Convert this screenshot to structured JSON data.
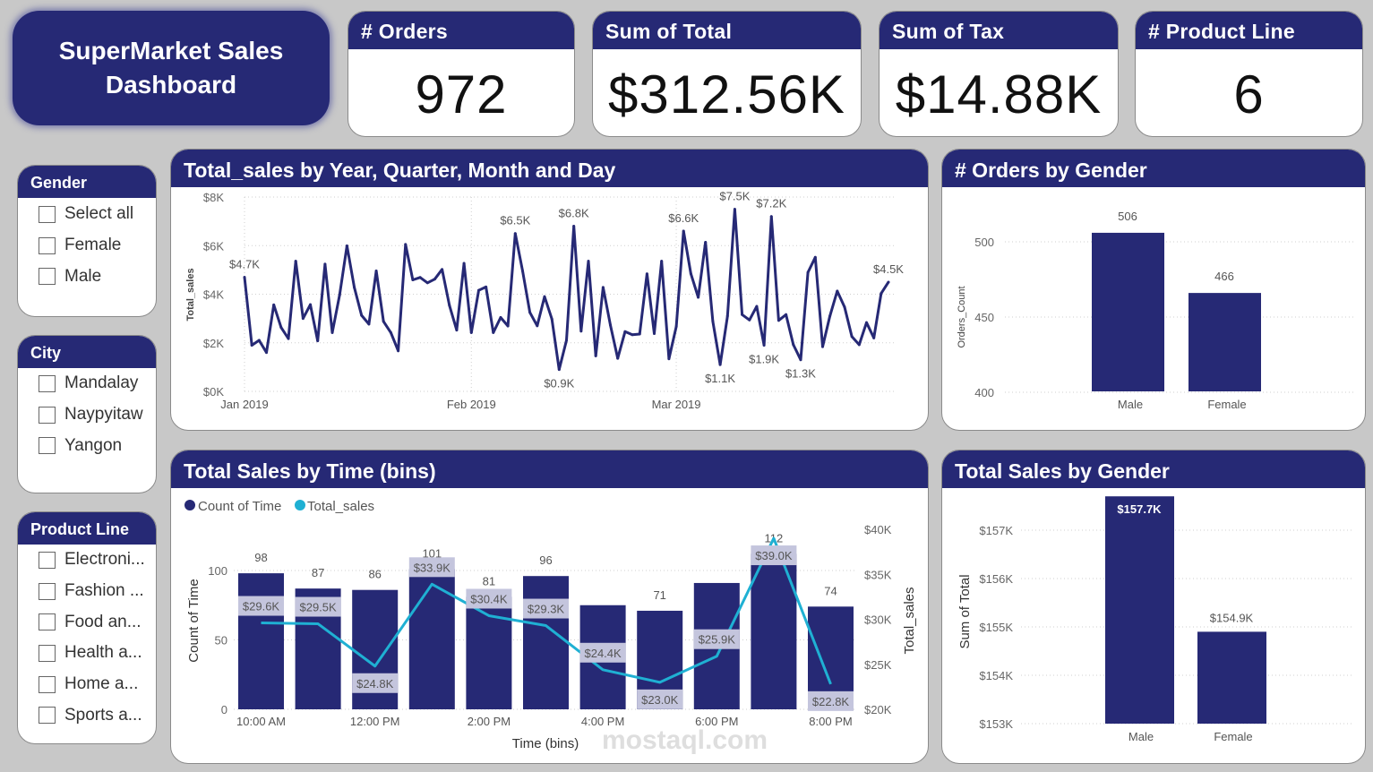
{
  "title": {
    "line1": "SuperMarket Sales",
    "line2": "Dashboard"
  },
  "kpis": [
    {
      "label": "# Orders",
      "value": "972"
    },
    {
      "label": "Sum of Total",
      "value": "$312.56K"
    },
    {
      "label": "Sum of Tax",
      "value": "$14.88K"
    },
    {
      "label": "# Product Line",
      "value": "6"
    }
  ],
  "slicers": {
    "gender": {
      "title": "Gender",
      "items": [
        "Select all",
        "Female",
        "Male"
      ]
    },
    "city": {
      "title": "City",
      "items": [
        "Mandalay",
        "Naypyitaw",
        "Yangon"
      ]
    },
    "product_line": {
      "title": "Product Line",
      "items": [
        "Electroni...",
        "Fashion ...",
        "Food an...",
        "Health a...",
        "Home a...",
        "Sports a..."
      ]
    }
  },
  "colors": {
    "navy": "#262975",
    "cyan": "#1fb0d3",
    "background": "#c8c8c8"
  },
  "watermark": "mostaql.com",
  "chart_data": [
    {
      "type": "line",
      "title": "Total_sales by Year, Quarter, Month and Day",
      "ylabel": "Total_sales",
      "ylim": [
        0,
        8000
      ],
      "yticks": [
        "$0K",
        "$2K",
        "$4K",
        "$6K",
        "$8K"
      ],
      "xticks": [
        "Jan 2019",
        "Feb 2019",
        "Mar 2019"
      ],
      "x_start": "2019-01-01",
      "x_end": "2019-03-30",
      "values": [
        4700,
        1900,
        2100,
        1600,
        3560,
        2630,
        2170,
        5360,
        3000,
        3570,
        2080,
        5240,
        2420,
        3970,
        5990,
        4280,
        3130,
        2770,
        4960,
        2880,
        2420,
        1670,
        6050,
        4590,
        4690,
        4470,
        4620,
        5020,
        3540,
        2520,
        5270,
        2420,
        4160,
        4300,
        2420,
        3040,
        2690,
        6500,
        4960,
        3250,
        2700,
        3900,
        2980,
        900,
        2100,
        6800,
        2480,
        5360,
        1460,
        4280,
        2730,
        1360,
        2460,
        2330,
        2360,
        4840,
        2380,
        5360,
        1340,
        2670,
        6600,
        4840,
        3870,
        6140,
        2880,
        1100,
        3100,
        7500,
        3160,
        2940,
        3500,
        1900,
        7200,
        2920,
        3160,
        1920,
        1300,
        4900,
        5520,
        1840,
        3100,
        4130,
        3470,
        2260,
        1920,
        2830,
        2200,
        4030,
        4500
      ],
      "data_labels": [
        {
          "index": 0,
          "text": "$4.7K"
        },
        {
          "index": 37,
          "text": "$6.5K"
        },
        {
          "index": 45,
          "text": "$6.8K"
        },
        {
          "index": 60,
          "text": "$6.6K"
        },
        {
          "index": 67,
          "text": "$7.5K"
        },
        {
          "index": 72,
          "text": "$7.2K"
        },
        {
          "index": 88,
          "text": "$4.5K"
        },
        {
          "index": 43,
          "text": "$0.9K"
        },
        {
          "index": 65,
          "text": "$1.1K"
        },
        {
          "index": 71,
          "text": "$1.9K"
        },
        {
          "index": 76,
          "text": "$1.3K"
        }
      ],
      "grid": true
    },
    {
      "type": "bar",
      "title": "# Orders by Gender",
      "ylabel": "Orders_Count",
      "categories": [
        "Male",
        "Female"
      ],
      "values": [
        506,
        466
      ],
      "ylim": [
        400,
        500
      ],
      "yticks": [
        "400",
        "450",
        "500"
      ],
      "grid": true
    },
    {
      "type": "bar+line",
      "title": "Total Sales by Time (bins)",
      "xlabel": "Time (bins)",
      "ylabel": "Count of Time",
      "y2label": "Total_sales",
      "legend": [
        "Count of Time",
        "Total_sales"
      ],
      "legend_position": "top-left",
      "categories": [
        "10:00 AM",
        "11:00 AM",
        "12:00 PM",
        "1:00 PM",
        "2:00 PM",
        "3:00 PM",
        "4:00 PM",
        "5:00 PM",
        "6:00 PM",
        "7:00 PM",
        "8:00 PM"
      ],
      "xtick_labels": [
        "10:00 AM",
        "",
        "12:00 PM",
        "",
        "2:00 PM",
        "",
        "4:00 PM",
        "",
        "6:00 PM",
        "",
        "8:00 PM"
      ],
      "count": [
        98,
        87,
        86,
        101,
        81,
        96,
        75,
        71,
        91,
        112,
        74
      ],
      "count_labels": [
        "98",
        "87",
        "86",
        "101",
        "81",
        "96",
        "",
        "71",
        "",
        "112",
        "74"
      ],
      "sales": [
        29.6,
        29.5,
        24.8,
        33.9,
        30.4,
        29.3,
        24.4,
        23.0,
        25.9,
        39.0,
        22.8
      ],
      "sales_labels": [
        "$29.6K",
        "$29.5K",
        "$24.8K",
        "$33.9K",
        "$30.4K",
        "$29.3K",
        "$24.4K",
        "$23.0K",
        "$25.9K",
        "$39.0K",
        "$22.8K"
      ],
      "ylim": [
        0,
        120
      ],
      "yticks": [
        "0",
        "50",
        "100"
      ],
      "y2lim": [
        20,
        40
      ],
      "y2ticks": [
        "$20K",
        "$25K",
        "$30K",
        "$35K",
        "$40K"
      ]
    },
    {
      "type": "bar",
      "title": "Total Sales by Gender",
      "ylabel": "Sum of Total",
      "categories": [
        "Male",
        "Female"
      ],
      "values": [
        157.7,
        154.9
      ],
      "value_labels": [
        "$157.7K",
        "$154.9K"
      ],
      "ylim": [
        153,
        157
      ],
      "yticks": [
        "$153K",
        "$154K",
        "$155K",
        "$156K",
        "$157K"
      ],
      "grid": true
    }
  ]
}
